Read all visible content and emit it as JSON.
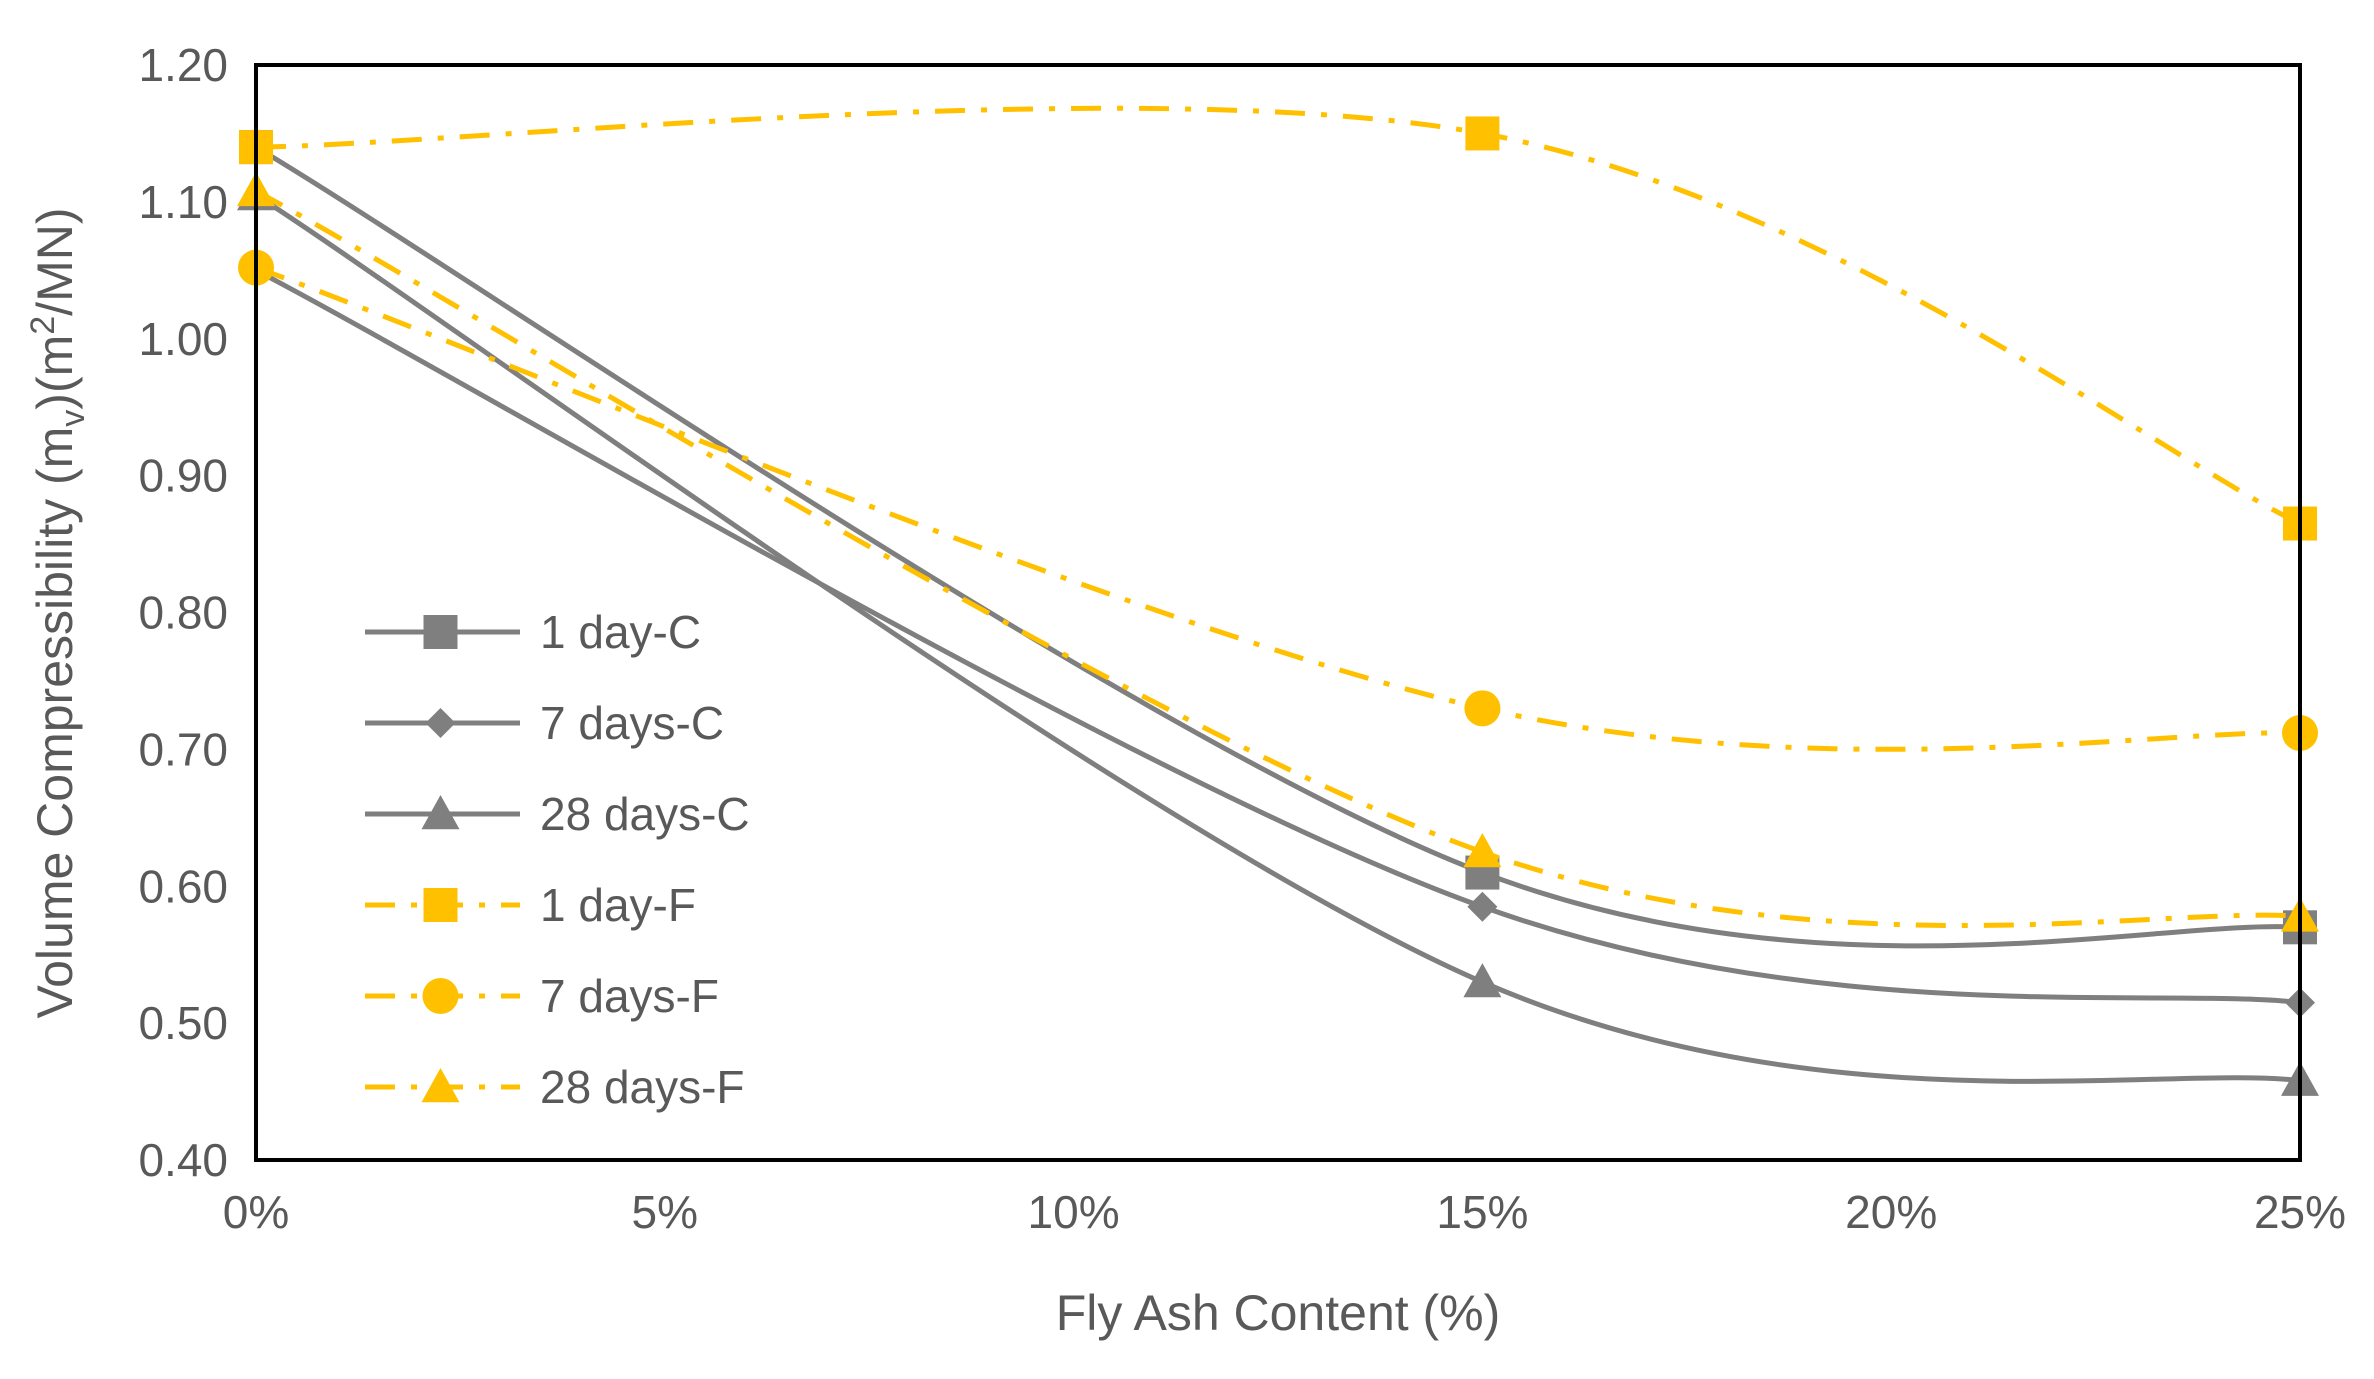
{
  "chart_data": {
    "type": "line",
    "title": "",
    "xlabel": "Fly Ash Content (%)",
    "ylabel_parts": {
      "pre": "Volume Compressibility (m",
      "sub": "v",
      "mid": ")(m",
      "sup": "2",
      "post": "/MN)"
    },
    "x": [
      0,
      15,
      25
    ],
    "xlim": [
      0,
      25
    ],
    "xticks": [
      0,
      5,
      10,
      15,
      20,
      25
    ],
    "xtick_labels": [
      "0%",
      "5%",
      "10%",
      "15%",
      "20%",
      "25%"
    ],
    "ylim": [
      0.4,
      1.2
    ],
    "yticks": [
      0.4,
      0.5,
      0.6,
      0.7,
      0.8,
      0.9,
      1.0,
      1.1,
      1.2
    ],
    "ytick_labels": [
      "0.40",
      "0.50",
      "0.60",
      "0.70",
      "0.80",
      "0.90",
      "1.00",
      "1.10",
      "1.20"
    ],
    "grid": false,
    "legend_position": "left-lower",
    "series": [
      {
        "name": "1 day-C",
        "values": [
          1.14,
          0.61,
          0.57
        ],
        "color": "#7f7f7f",
        "marker": "square",
        "dash": "solid"
      },
      {
        "name": "7 days-C",
        "values": [
          1.05,
          0.585,
          0.515
        ],
        "color": "#7f7f7f",
        "marker": "diamond",
        "dash": "solid"
      },
      {
        "name": "28 days-C",
        "values": [
          1.105,
          0.53,
          0.458
        ],
        "color": "#7f7f7f",
        "marker": "triangle",
        "dash": "solid"
      },
      {
        "name": "1 day-F",
        "values": [
          1.14,
          1.15,
          0.865
        ],
        "color": "#ffc000",
        "marker": "square",
        "dash": "dashdot"
      },
      {
        "name": "7 days-F",
        "values": [
          1.052,
          0.73,
          0.712
        ],
        "color": "#ffc000",
        "marker": "circle",
        "dash": "dashdot"
      },
      {
        "name": "28 days-F",
        "values": [
          1.108,
          0.625,
          0.578
        ],
        "color": "#ffc000",
        "marker": "triangle",
        "dash": "dashdot"
      }
    ]
  }
}
